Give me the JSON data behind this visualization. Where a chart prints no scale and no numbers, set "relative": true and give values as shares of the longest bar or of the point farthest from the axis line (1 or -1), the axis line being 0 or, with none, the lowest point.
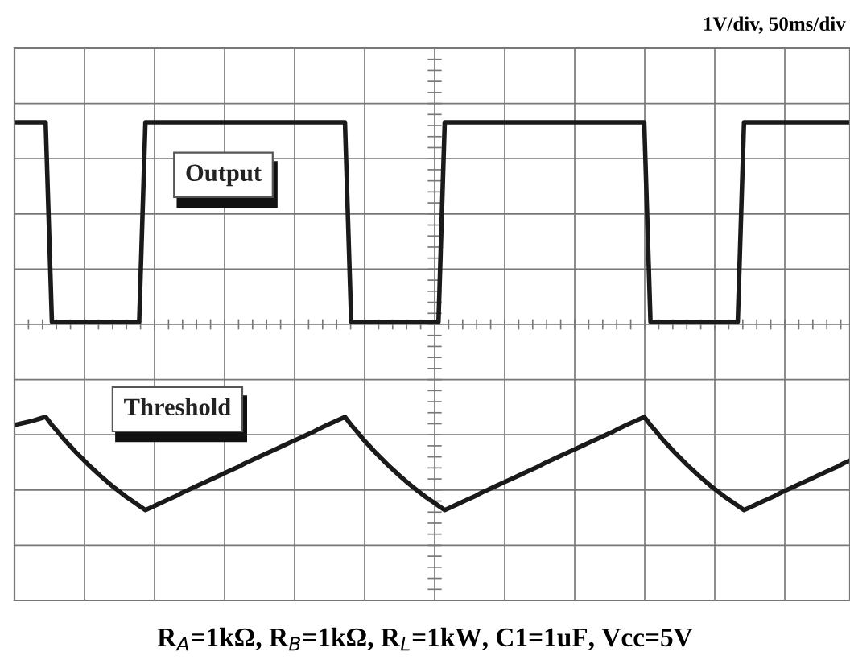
{
  "chart_data": {
    "type": "line",
    "title": "1V/div, 50ms/div",
    "relative": true,
    "grid": true,
    "legend": false,
    "line_style": "solid",
    "marker": "none",
    "annotations": [
      "R$_{A}$=1kΩ, R$_{B}$=1kΩ, R$_{L}$=1kW, C1=1uF, Vcc=5V"
    ],
    "categories": [
      null,
      null,
      null,
      null,
      null,
      null,
      null,
      null,
      null,
      null,
      null,
      null,
      null,
      null,
      null,
      null,
      null,
      null,
      null,
      null,
      null,
      null,
      null,
      null,
      null,
      null,
      null,
      null,
      null,
      null,
      null,
      null,
      null,
      null,
      null,
      null,
      null,
      null,
      null,
      null,
      null,
      null,
      null,
      null,
      null,
      null,
      null,
      null,
      null,
      null,
      null,
      null,
      null,
      null,
      null,
      null,
      null,
      null,
      null,
      null,
      null,
      null,
      null,
      null,
      null,
      null,
      null,
      null,
      null,
      null,
      null,
      null,
      null,
      null,
      null,
      null,
      null,
      null,
      null,
      null,
      null,
      null,
      null,
      null,
      null,
      null,
      null,
      null,
      null,
      null,
      null,
      null,
      null,
      null,
      null,
      null,
      null,
      null,
      null,
      null,
      null,
      null,
      null,
      null,
      null,
      null,
      null,
      null,
      null,
      null,
      null,
      null,
      null,
      null,
      null,
      null,
      null,
      null,
      null,
      null,
      null,
      null,
      null,
      null,
      null,
      null,
      null,
      null,
      null,
      null,
      null,
      null,
      null,
      null,
      null
    ],
    "series": [
      {
        "name": "Output",
        "color": "#1a1a1a",
        "values": [
          1,
          1,
          1,
          1,
          1,
          1,
          0.583,
          0.583,
          0.583,
          0.583,
          0.583,
          0.583,
          0.583,
          0.583,
          0.583,
          0.583,
          0.583,
          0.583,
          0.583,
          0.583,
          0.583,
          1,
          1,
          1,
          1,
          1,
          1,
          1,
          1,
          1,
          1,
          1,
          1,
          1,
          1,
          1,
          1,
          1,
          1,
          1,
          1,
          1,
          1,
          1,
          1,
          1,
          1,
          1,
          1,
          1,
          1,
          1,
          1,
          1,
          0.583,
          0.583,
          0.583,
          0.583,
          0.583,
          0.583,
          0.583,
          0.583,
          0.583,
          0.583,
          0.583,
          0.583,
          0.583,
          0.583,
          0.583,
          1,
          1,
          1,
          1,
          1,
          1,
          1,
          1,
          1,
          1,
          1,
          1,
          1,
          1,
          1,
          1,
          1,
          1,
          1,
          1,
          1,
          1,
          1,
          1,
          1,
          1,
          1,
          1,
          1,
          1,
          1,
          1,
          1,
          0.583,
          0.583,
          0.583,
          0.583,
          0.583,
          0.583,
          0.583,
          0.583,
          0.583,
          0.583,
          0.583,
          0.583,
          0.583,
          0.583,
          0.583,
          1,
          1,
          1,
          1,
          1,
          1,
          1,
          1,
          1,
          1,
          1,
          1,
          1,
          1,
          1,
          1,
          1,
          1
        ]
      },
      {
        "name": "Threshold",
        "color": "#1a1a1a",
        "values": [
          0.367,
          0.37,
          0.373,
          0.376,
          0.38,
          0.384,
          0.367,
          0.352,
          0.336,
          0.322,
          0.308,
          0.295,
          0.282,
          0.27,
          0.258,
          0.247,
          0.236,
          0.226,
          0.216,
          0.207,
          0.198,
          0.189,
          0.195,
          0.201,
          0.207,
          0.213,
          0.219,
          0.226,
          0.232,
          0.238,
          0.244,
          0.25,
          0.256,
          0.262,
          0.268,
          0.274,
          0.28,
          0.287,
          0.293,
          0.299,
          0.305,
          0.311,
          0.317,
          0.323,
          0.329,
          0.335,
          0.341,
          0.347,
          0.353,
          0.36,
          0.366,
          0.372,
          0.378,
          0.384,
          0.367,
          0.352,
          0.336,
          0.322,
          0.308,
          0.295,
          0.282,
          0.27,
          0.258,
          0.247,
          0.236,
          0.226,
          0.216,
          0.207,
          0.198,
          0.189,
          0.195,
          0.201,
          0.207,
          0.213,
          0.219,
          0.226,
          0.232,
          0.238,
          0.244,
          0.25,
          0.256,
          0.262,
          0.268,
          0.274,
          0.28,
          0.287,
          0.293,
          0.299,
          0.305,
          0.311,
          0.317,
          0.323,
          0.329,
          0.335,
          0.341,
          0.347,
          0.353,
          0.36,
          0.366,
          0.372,
          0.378,
          0.384,
          0.367,
          0.352,
          0.336,
          0.322,
          0.308,
          0.295,
          0.282,
          0.27,
          0.258,
          0.247,
          0.236,
          0.226,
          0.216,
          0.207,
          0.198,
          0.189,
          0.195,
          0.201,
          0.207,
          0.213,
          0.219,
          0.226,
          0.232,
          0.238,
          0.244,
          0.25,
          0.256,
          0.262,
          0.268,
          0.274,
          0.28,
          0.287,
          0.293
        ]
      }
    ]
  }
}
